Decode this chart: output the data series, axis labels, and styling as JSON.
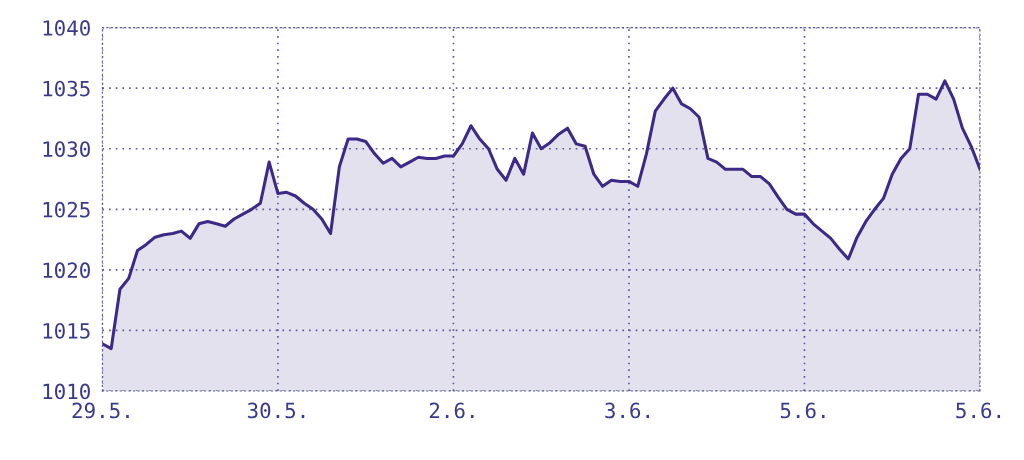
{
  "chart_data": {
    "type": "area",
    "color": "#3d2a87",
    "grid": true,
    "line_style": "solid",
    "categories": [
      "29.5.",
      null,
      null,
      null,
      null,
      null,
      null,
      null,
      null,
      null,
      null,
      null,
      null,
      null,
      null,
      null,
      null,
      null,
      null,
      null,
      "30.5.",
      null,
      null,
      null,
      null,
      null,
      null,
      null,
      null,
      null,
      null,
      null,
      null,
      null,
      null,
      null,
      null,
      null,
      null,
      null,
      "2.6.",
      null,
      null,
      null,
      null,
      null,
      null,
      null,
      null,
      null,
      null,
      null,
      null,
      null,
      null,
      null,
      null,
      null,
      null,
      null,
      "3.6.",
      null,
      null,
      null,
      null,
      null,
      null,
      null,
      null,
      null,
      null,
      null,
      null,
      null,
      null,
      null,
      null,
      null,
      null,
      null,
      "5.6.",
      null,
      null,
      null,
      null,
      null,
      null,
      null,
      null,
      null,
      null,
      null,
      null,
      null,
      null,
      null,
      null,
      null,
      null,
      null,
      "5.6."
    ],
    "values": [
      1013.9,
      1013.5,
      1018.4,
      1019.3,
      1021.6,
      1022.1,
      1022.7,
      1022.9,
      1023.0,
      1023.2,
      1022.6,
      1023.8,
      1024.0,
      1023.8,
      1023.6,
      1024.2,
      1024.6,
      1025.0,
      1025.5,
      1028.9,
      1026.3,
      1026.4,
      1026.1,
      1025.5,
      1025.0,
      1024.2,
      1023.0,
      1028.5,
      1030.8,
      1030.8,
      1030.6,
      1029.6,
      1028.8,
      1029.2,
      1028.5,
      1028.9,
      1029.3,
      1029.2,
      1029.2,
      1029.4,
      1029.4,
      1030.4,
      1031.9,
      1030.8,
      1030.0,
      1028.3,
      1027.4,
      1029.2,
      1027.9,
      1031.3,
      1030.0,
      1030.5,
      1031.2,
      1031.7,
      1030.4,
      1030.2,
      1027.9,
      1026.9,
      1027.4,
      1027.3,
      1027.3,
      1026.9,
      1029.6,
      1033.1,
      1034.1,
      1035.0,
      1033.7,
      1033.3,
      1032.6,
      1029.2,
      1028.9,
      1028.3,
      1028.3,
      1028.3,
      1027.7,
      1027.7,
      1027.1,
      1026.0,
      1025.0,
      1024.6,
      1024.6,
      1023.8,
      1023.2,
      1022.6,
      1021.7,
      1020.9,
      1022.7,
      1024.0,
      1025.0,
      1025.9,
      1027.9,
      1029.2,
      1030.0,
      1034.5,
      1034.5,
      1034.1,
      1035.6,
      1034.1,
      1031.7,
      1030.2,
      1028.3
    ],
    "ylim": [
      1010,
      1040
    ],
    "yticks": [
      1010,
      1015,
      1020,
      1025,
      1030,
      1035,
      1040
    ]
  }
}
